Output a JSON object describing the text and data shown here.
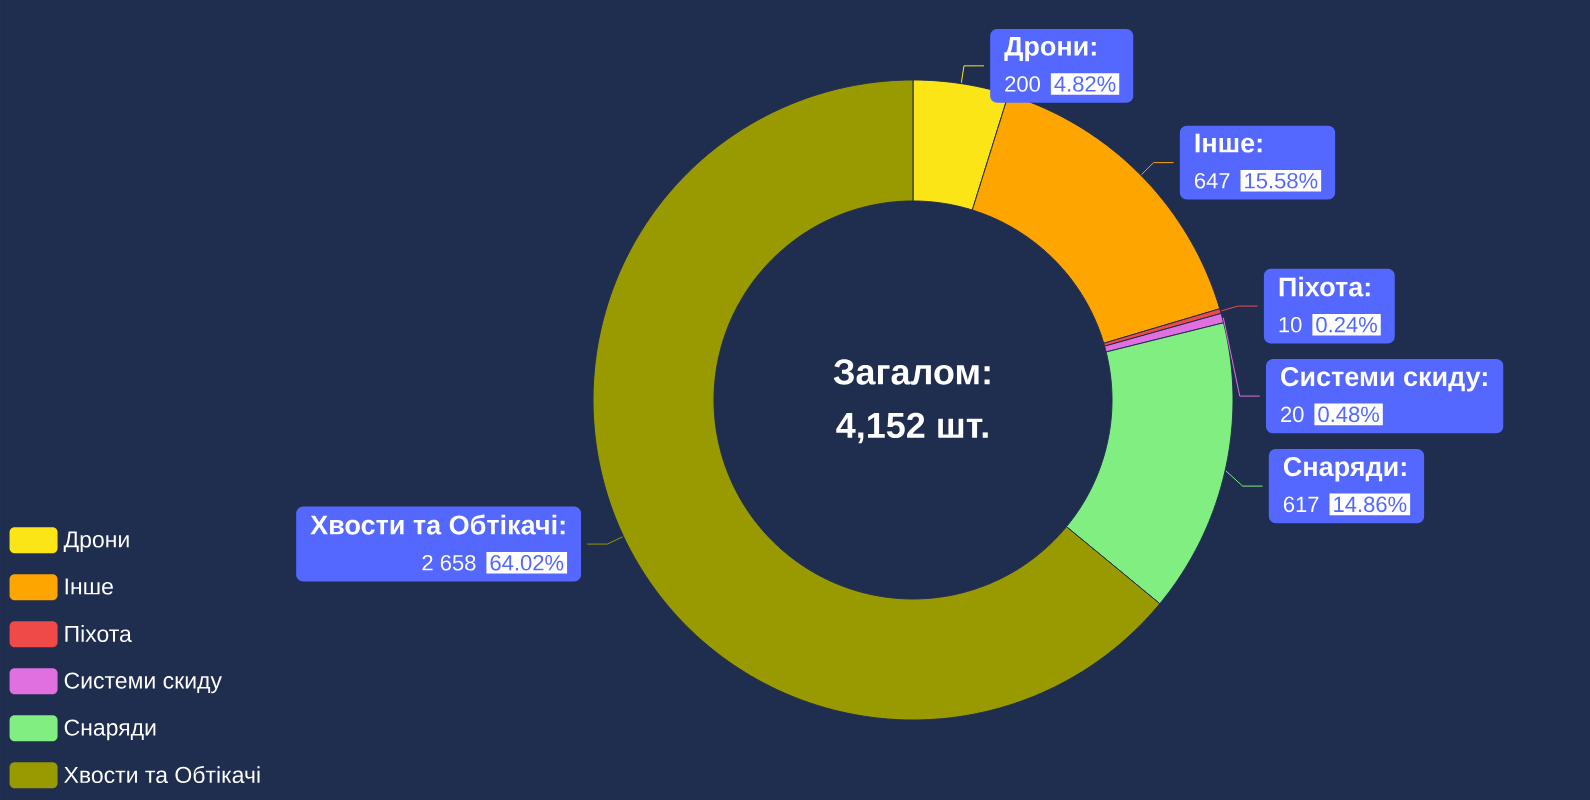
{
  "chart_data": {
    "type": "donut",
    "categories": [
      "Дрони",
      "Інше",
      "Піхота",
      "Системи скиду",
      "Снаряди",
      "Хвости та Обтікачі"
    ],
    "values": [
      200,
      647,
      10,
      20,
      617,
      2658
    ],
    "colors": [
      "#fce516",
      "#ffa500",
      "#f04a48",
      "#e070e0",
      "#80ee80",
      "#999900"
    ],
    "value_labels": [
      "200",
      "647",
      "10",
      "20",
      "617",
      "2 658"
    ],
    "annotations": [
      "Загалом:",
      "4,152 шт.",
      {
        "text": "Дрони:",
        "x": "Дрони"
      },
      {
        "text": "4.82%",
        "x": "Дрони"
      },
      {
        "text": "Інше:",
        "x": "Інше"
      },
      {
        "text": "15.58%",
        "x": "Інше"
      },
      {
        "text": "Піхота:",
        "x": "Піхота"
      },
      {
        "text": "0.24%",
        "x": "Піхота"
      },
      {
        "text": "Системи скиду:",
        "x": "Системи скиду"
      },
      {
        "text": "0.48%",
        "x": "Системи скиду"
      },
      {
        "text": "Снаряди:",
        "x": "Снаряди"
      },
      {
        "text": "14.86%",
        "x": "Снаряди"
      },
      {
        "text": "Хвости та Обтікачі:",
        "x": "Хвости та Обтікачі"
      },
      {
        "text": "64.02%",
        "x": "Хвости та Обтікачі"
      }
    ],
    "legend": "bottom left"
  }
}
